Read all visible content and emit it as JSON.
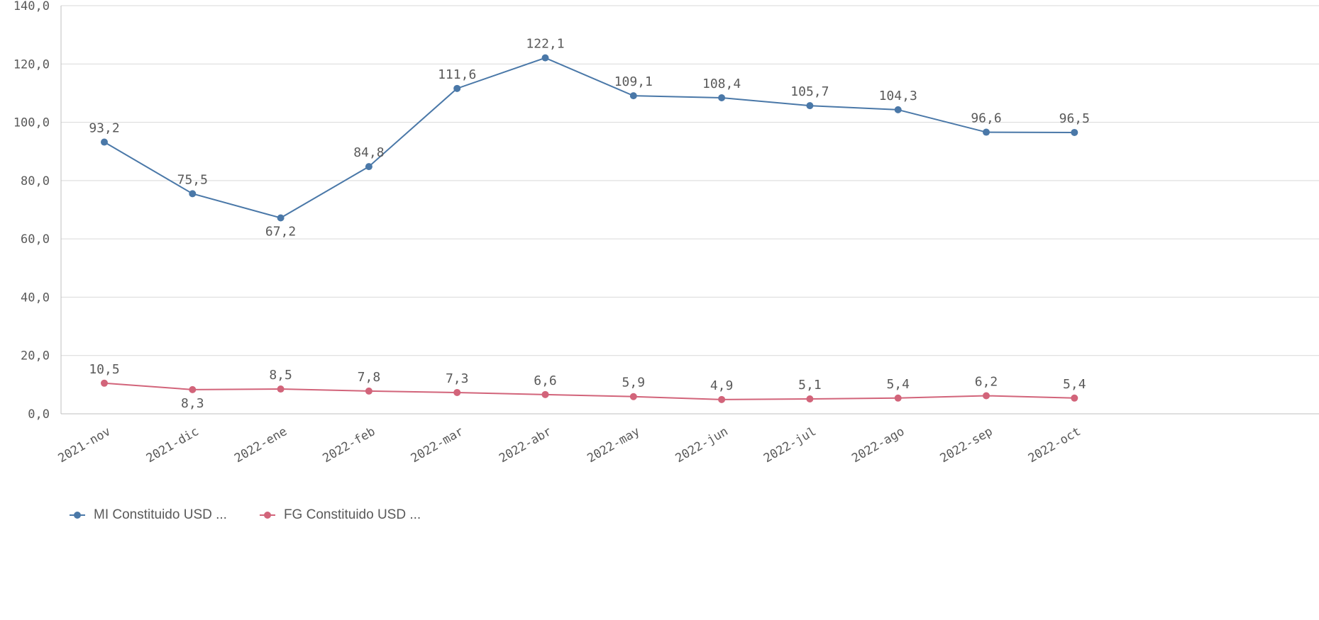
{
  "chart_data": {
    "type": "line",
    "categories": [
      "2021-nov",
      "2021-dic",
      "2022-ene",
      "2022-feb",
      "2022-mar",
      "2022-abr",
      "2022-may",
      "2022-jun",
      "2022-jul",
      "2022-ago",
      "2022-sep",
      "2022-oct"
    ],
    "series": [
      {
        "name": "MI Constituido USD ...",
        "color": "#4a78a8",
        "values": [
          93.2,
          75.5,
          67.2,
          84.8,
          111.6,
          122.1,
          109.1,
          108.4,
          105.7,
          104.3,
          96.6,
          96.5
        ],
        "labels": [
          "93,2",
          "75,5",
          "67,2",
          "84,8",
          "111,6",
          "122,1",
          "109,1",
          "108,4",
          "105,7",
          "104,3",
          "96,6",
          "96,5"
        ]
      },
      {
        "name": "FG Constituido USD ...",
        "color": "#d2647a",
        "values": [
          10.5,
          8.3,
          8.5,
          7.8,
          7.3,
          6.6,
          5.9,
          4.9,
          5.1,
          5.4,
          6.2,
          5.4
        ],
        "labels": [
          "10,5",
          "8,3",
          "8,5",
          "7,8",
          "7,3",
          "6,6",
          "5,9",
          "4,9",
          "5,1",
          "5,4",
          "6,2",
          "5,4"
        ]
      }
    ],
    "ylim": [
      0,
      140
    ],
    "yticks": [
      0,
      20,
      40,
      60,
      80,
      100,
      120,
      140
    ],
    "ytick_labels": [
      "0,0",
      "20,0",
      "40,0",
      "60,0",
      "80,0",
      "100,0",
      "120,0",
      "140,0"
    ],
    "grid": true,
    "legend_position": "bottom-left"
  }
}
